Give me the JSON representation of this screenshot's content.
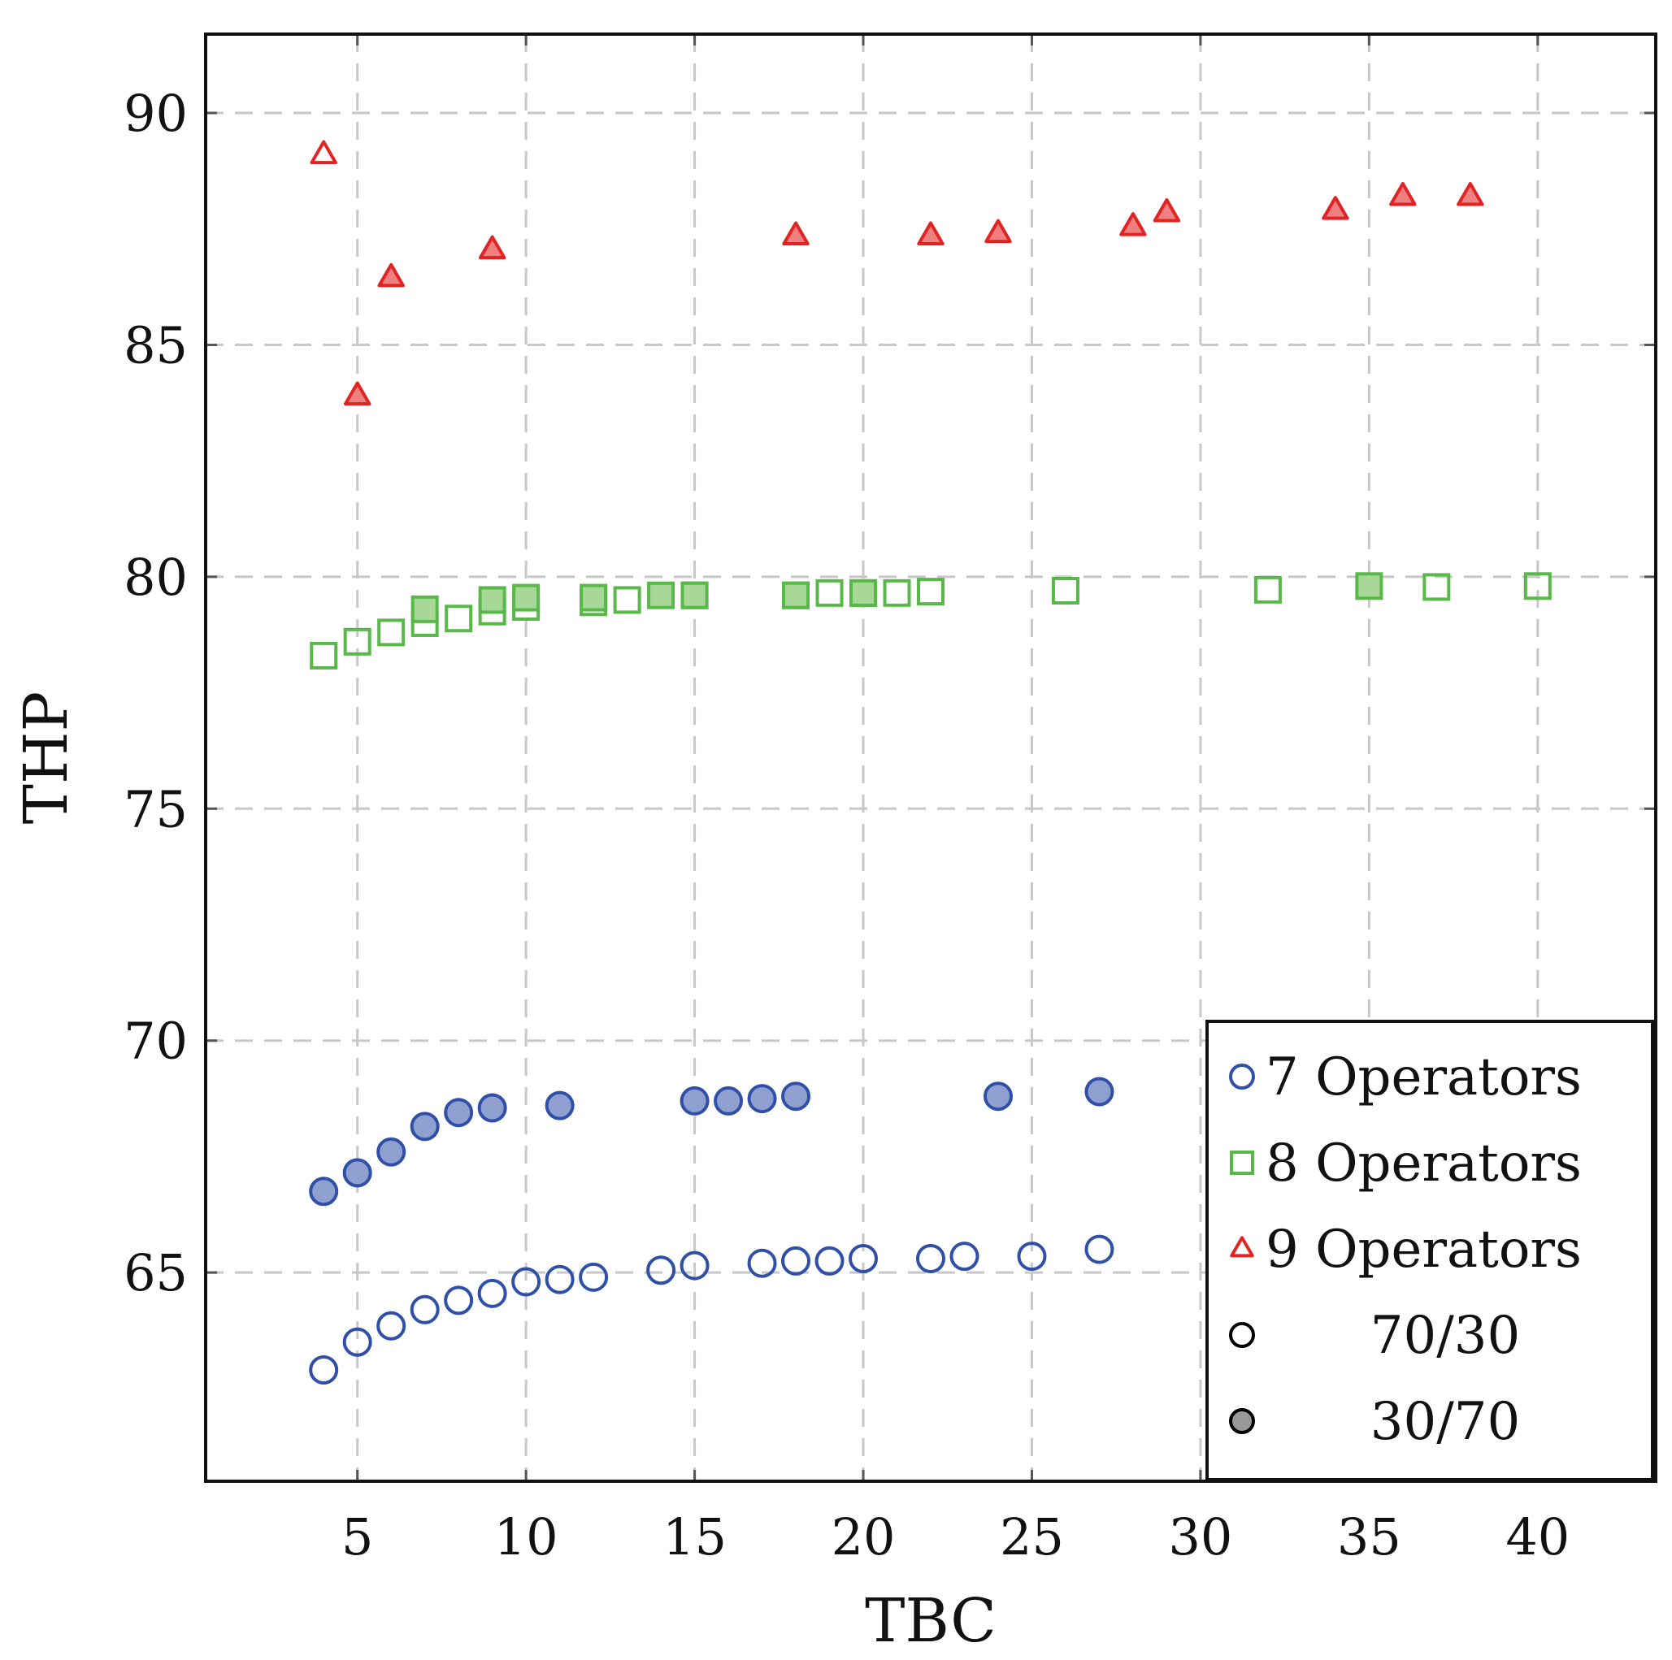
{
  "chart_data": {
    "type": "scatter",
    "title": "",
    "xlabel": "TBC",
    "ylabel": "THP",
    "xlim": [
      0.5,
      43.5
    ],
    "ylim": [
      60.5,
      91.7
    ],
    "xticks": [
      5,
      10,
      15,
      20,
      25,
      30,
      35,
      40
    ],
    "yticks": [
      65,
      70,
      75,
      80,
      85,
      90
    ],
    "grid": true,
    "legend_position": "bottom-right",
    "series": [
      {
        "name": "7 Operators",
        "marker": "circle",
        "color": "#3050a8",
        "fill": "#8fa0d0",
        "groups": [
          {
            "split": "70/30",
            "filled": false,
            "x": [
              4,
              5,
              6,
              7,
              8,
              9,
              10,
              11,
              12,
              14,
              15,
              17,
              18,
              19,
              20,
              22,
              23,
              25,
              27
            ],
            "y": [
              62.9,
              63.5,
              63.85,
              64.2,
              64.4,
              64.55,
              64.8,
              64.85,
              64.9,
              65.05,
              65.15,
              65.2,
              65.25,
              65.25,
              65.3,
              65.3,
              65.35,
              65.35,
              65.5
            ]
          },
          {
            "split": "30/70",
            "filled": true,
            "x": [
              4,
              5,
              6,
              7,
              8,
              9,
              11,
              15,
              16,
              17,
              18,
              24,
              27
            ],
            "y": [
              66.75,
              67.15,
              67.6,
              68.15,
              68.45,
              68.55,
              68.6,
              68.7,
              68.7,
              68.75,
              68.8,
              68.8,
              68.9
            ]
          }
        ]
      },
      {
        "name": "8 Operators",
        "marker": "square",
        "color": "#58b848",
        "fill": "#a8d898",
        "groups": [
          {
            "split": "70/30",
            "filled": false,
            "x": [
              4,
              5,
              6,
              7,
              8,
              9,
              10,
              12,
              13,
              15,
              18,
              19,
              20,
              21,
              22,
              26,
              32,
              37,
              40
            ],
            "y": [
              78.3,
              78.6,
              78.8,
              79.0,
              79.1,
              79.25,
              79.35,
              79.45,
              79.5,
              79.6,
              79.6,
              79.65,
              79.65,
              79.65,
              79.68,
              79.7,
              79.72,
              79.78,
              79.8
            ]
          },
          {
            "split": "30/70",
            "filled": true,
            "x": [
              7,
              9,
              10,
              12,
              14,
              15,
              18,
              20,
              35
            ],
            "y": [
              79.3,
              79.5,
              79.55,
              79.55,
              79.6,
              79.6,
              79.6,
              79.65,
              79.8
            ]
          }
        ]
      },
      {
        "name": "9 Operators",
        "marker": "triangle",
        "color": "#e02424",
        "fill": "#f08080",
        "groups": [
          {
            "split": "70/30",
            "filled": false,
            "x": [
              4
            ],
            "y": [
              89.1
            ]
          },
          {
            "split": "30/70",
            "filled": true,
            "x": [
              5,
              6,
              9,
              18,
              22,
              24,
              28,
              29,
              34,
              36,
              38
            ],
            "y": [
              83.9,
              86.45,
              87.05,
              87.35,
              87.35,
              87.4,
              87.55,
              87.85,
              87.9,
              88.2,
              88.2
            ]
          }
        ]
      }
    ],
    "legend": [
      {
        "label": "7 Operators",
        "marker": "circle",
        "color": "#3050a8",
        "filled": false
      },
      {
        "label": "8 Operators",
        "marker": "square",
        "color": "#58b848",
        "filled": false
      },
      {
        "label": "9 Operators",
        "marker": "triangle",
        "color": "#e02424",
        "filled": false
      },
      {
        "label": "70/30",
        "marker": "circle",
        "color": "#000000",
        "filled": false
      },
      {
        "label": "30/70",
        "marker": "circle",
        "color": "#000000",
        "filled": true,
        "fill": "#999999"
      }
    ]
  }
}
